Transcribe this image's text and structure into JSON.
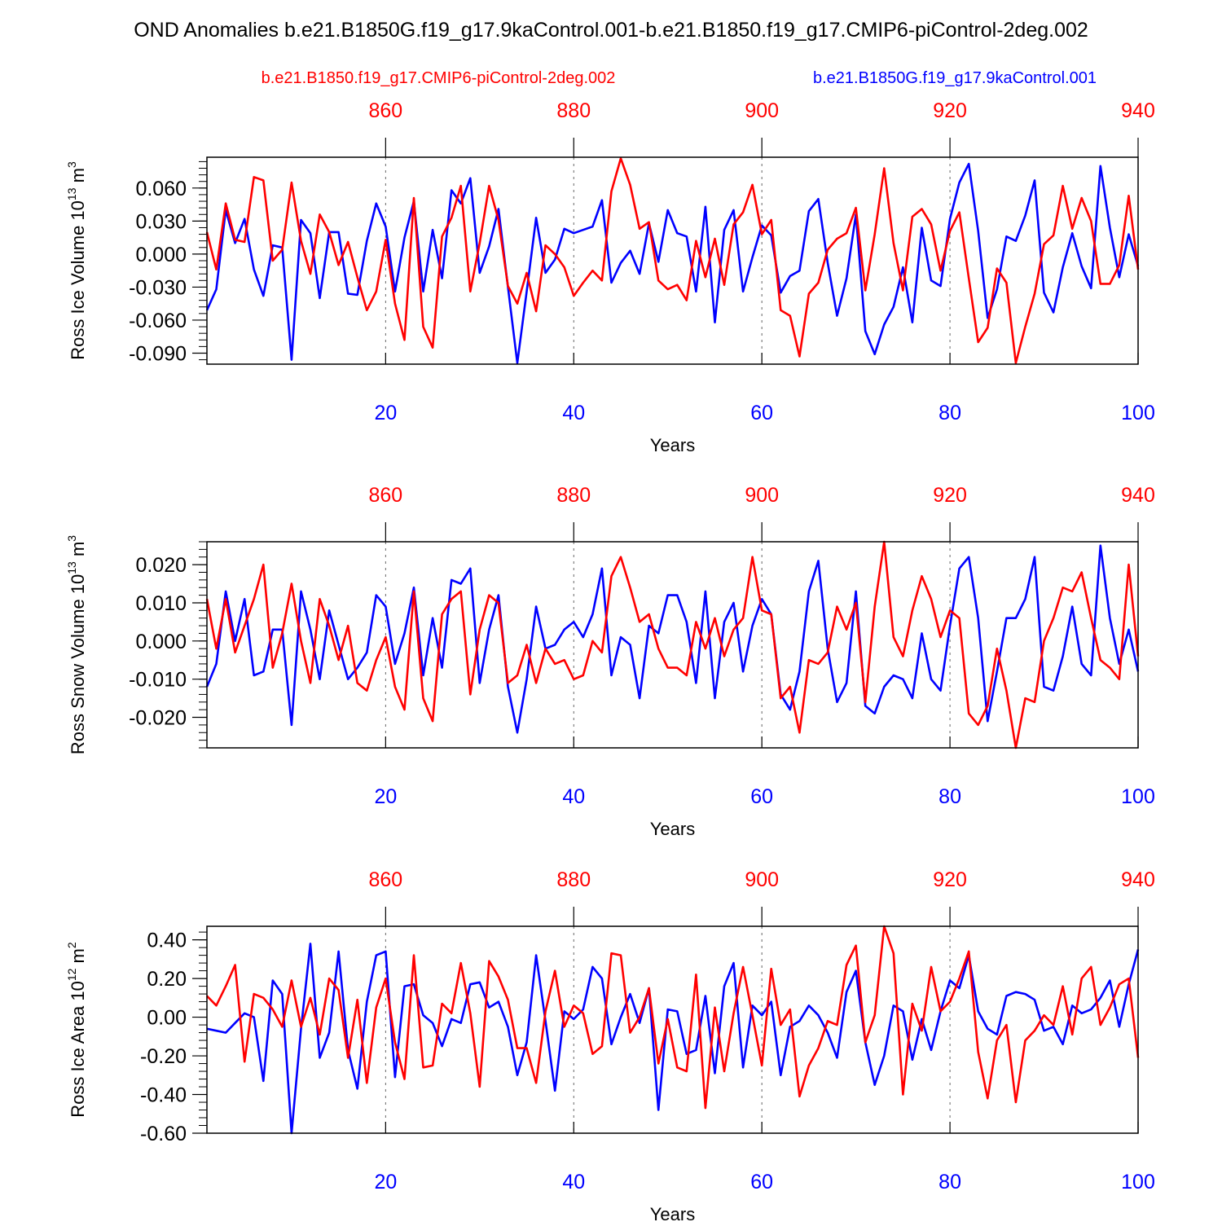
{
  "title": "OND Anomalies b.e21.B1850G.f19_g17.9kaControl.001-b.e21.B1850.f19_g17.CMIP6-piControl-2deg.002",
  "legend": {
    "red_label": "b.e21.B1850.f19_g17.CMIP6-piControl-2deg.002",
    "blue_label": "b.e21.B1850G.f19_g17.9kaControl.001"
  },
  "colors": {
    "red": "#ff0000",
    "blue": "#0000ff",
    "frame": "#000000"
  },
  "chart_data": [
    {
      "type": "line",
      "ylabel": {
        "text": "Ross Ice Volume 10",
        "sup": "13",
        "unit": " m",
        "unit_sup": "3"
      },
      "xlabel": "Years",
      "xlim": [
        1,
        100
      ],
      "top_xlim": [
        841,
        940
      ],
      "ylim": [
        -0.1,
        0.088
      ],
      "yticks": [
        -0.09,
        -0.06,
        -0.03,
        0.0,
        0.03,
        0.06
      ],
      "ytick_labels": [
        "-0.090",
        "-0.060",
        "-0.030",
        "0.000",
        "0.030",
        "0.060"
      ],
      "yminor_step": 0.006,
      "xticks": [
        20,
        40,
        60,
        80,
        100
      ],
      "xtick_labels": [
        "20",
        "40",
        "60",
        "80",
        "100"
      ],
      "top_xticks": [
        860,
        880,
        900,
        920,
        940
      ],
      "top_xtick_labels": [
        "860",
        "880",
        "900",
        "920",
        "940"
      ],
      "grid_x": [
        20,
        40,
        60,
        80
      ],
      "series": [
        {
          "name": "b.e21.B1850G.f19_g17.9kaControl.001",
          "color": "#0000ff",
          "values": [
            -0.051,
            -0.032,
            0.04,
            0.01,
            0.032,
            -0.014,
            -0.038,
            0.008,
            0.006,
            -0.096,
            0.031,
            0.019,
            -0.04,
            0.02,
            0.02,
            -0.036,
            -0.037,
            0.012,
            0.046,
            0.025,
            -0.034,
            0.015,
            0.048,
            -0.034,
            0.022,
            -0.022,
            0.058,
            0.046,
            0.069,
            -0.017,
            0.007,
            0.041,
            -0.03,
            -0.099,
            -0.034,
            0.033,
            -0.017,
            -0.005,
            0.023,
            0.019,
            0.022,
            0.025,
            0.049,
            -0.026,
            -0.008,
            0.003,
            -0.018,
            0.028,
            -0.007,
            0.04,
            0.019,
            0.016,
            -0.034,
            0.043,
            -0.062,
            0.022,
            0.04,
            -0.034,
            -0.003,
            0.026,
            0.017,
            -0.035,
            -0.02,
            -0.015,
            0.039,
            0.05,
            -0.008,
            -0.056,
            -0.022,
            0.036,
            -0.07,
            -0.091,
            -0.064,
            -0.048,
            -0.012,
            -0.062,
            0.024,
            -0.024,
            -0.029,
            0.032,
            0.065,
            0.082,
            0.021,
            -0.058,
            -0.032,
            0.016,
            0.012,
            0.035,
            0.067,
            -0.035,
            -0.053,
            -0.012,
            0.019,
            -0.011,
            -0.031,
            0.08,
            0.024,
            -0.021,
            0.018,
            -0.011
          ]
        },
        {
          "name": "b.e21.B1850.f19_g17.CMIP6-piControl-2deg.002",
          "color": "#ff0000",
          "values": [
            0.02,
            -0.014,
            0.046,
            0.013,
            0.011,
            0.07,
            0.067,
            -0.006,
            0.004,
            0.065,
            0.012,
            -0.018,
            0.036,
            0.02,
            -0.01,
            0.011,
            -0.021,
            -0.051,
            -0.034,
            0.013,
            -0.045,
            -0.078,
            0.051,
            -0.066,
            -0.085,
            0.016,
            0.033,
            0.062,
            -0.034,
            0.01,
            0.062,
            0.031,
            -0.029,
            -0.045,
            -0.017,
            -0.052,
            0.008,
            0.0,
            -0.012,
            -0.038,
            -0.026,
            -0.015,
            -0.024,
            0.057,
            0.087,
            0.063,
            0.023,
            0.029,
            -0.024,
            -0.032,
            -0.028,
            -0.042,
            0.012,
            -0.021,
            0.014,
            -0.028,
            0.027,
            0.038,
            0.063,
            0.018,
            0.031,
            -0.051,
            -0.056,
            -0.093,
            -0.036,
            -0.026,
            0.004,
            0.014,
            0.019,
            0.042,
            -0.033,
            0.018,
            0.078,
            0.01,
            -0.033,
            0.034,
            0.041,
            0.027,
            -0.015,
            0.021,
            0.038,
            -0.022,
            -0.08,
            -0.067,
            -0.013,
            -0.026,
            -0.099,
            -0.066,
            -0.036,
            0.009,
            0.017,
            0.062,
            0.023,
            0.051,
            0.03,
            -0.027,
            -0.027,
            -0.01,
            0.053,
            -0.014
          ]
        }
      ]
    },
    {
      "type": "line",
      "ylabel": {
        "text": "Ross Snow Volume 10",
        "sup": "13",
        "unit": " m",
        "unit_sup": "3"
      },
      "xlabel": "Years",
      "xlim": [
        1,
        100
      ],
      "top_xlim": [
        841,
        940
      ],
      "ylim": [
        -0.028,
        0.026
      ],
      "yticks": [
        -0.02,
        -0.01,
        0.0,
        0.01,
        0.02
      ],
      "ytick_labels": [
        "-0.020",
        "-0.010",
        "0.000",
        "0.010",
        "0.020"
      ],
      "yminor_step": 0.002,
      "xticks": [
        20,
        40,
        60,
        80,
        100
      ],
      "xtick_labels": [
        "20",
        "40",
        "60",
        "80",
        "100"
      ],
      "top_xticks": [
        860,
        880,
        900,
        920,
        940
      ],
      "top_xtick_labels": [
        "860",
        "880",
        "900",
        "920",
        "940"
      ],
      "grid_x": [
        20,
        40,
        60,
        80
      ],
      "series": [
        {
          "name": "b.e21.B1850G.f19_g17.9kaControl.001",
          "color": "#0000ff",
          "values": [
            -0.012,
            -0.006,
            0.013,
            0.0,
            0.011,
            -0.009,
            -0.008,
            0.003,
            0.003,
            -0.022,
            0.013,
            0.003,
            -0.01,
            0.008,
            -0.001,
            -0.01,
            -0.007,
            -0.003,
            0.012,
            0.009,
            -0.006,
            0.002,
            0.014,
            -0.009,
            0.006,
            -0.007,
            0.016,
            0.015,
            0.019,
            -0.011,
            0.003,
            0.012,
            -0.012,
            -0.024,
            -0.01,
            0.009,
            -0.002,
            -0.001,
            0.003,
            0.005,
            0.001,
            0.007,
            0.019,
            -0.009,
            0.001,
            -0.001,
            -0.015,
            0.004,
            0.002,
            0.012,
            0.012,
            0.005,
            -0.011,
            0.013,
            -0.015,
            0.005,
            0.01,
            -0.008,
            0.004,
            0.011,
            0.007,
            -0.014,
            -0.018,
            -0.008,
            0.013,
            0.021,
            -0.002,
            -0.016,
            -0.011,
            0.013,
            -0.017,
            -0.019,
            -0.012,
            -0.009,
            -0.01,
            -0.015,
            0.002,
            -0.01,
            -0.013,
            0.004,
            0.019,
            0.022,
            0.006,
            -0.021,
            -0.008,
            0.006,
            0.006,
            0.011,
            0.022,
            -0.012,
            -0.013,
            -0.004,
            0.009,
            -0.006,
            -0.009,
            0.025,
            0.006,
            -0.006,
            0.003,
            -0.008
          ]
        },
        {
          "name": "b.e21.B1850.f19_g17.CMIP6-piControl-2deg.002",
          "color": "#ff0000",
          "values": [
            0.011,
            -0.002,
            0.011,
            -0.003,
            0.004,
            0.011,
            0.02,
            -0.007,
            0.002,
            0.015,
            0.0,
            -0.011,
            0.011,
            0.004,
            -0.005,
            0.004,
            -0.011,
            -0.013,
            -0.005,
            0.001,
            -0.012,
            -0.018,
            0.013,
            -0.015,
            -0.021,
            0.007,
            0.011,
            0.013,
            -0.014,
            0.003,
            0.012,
            0.01,
            -0.011,
            -0.009,
            -0.001,
            -0.011,
            -0.002,
            -0.006,
            -0.005,
            -0.01,
            -0.009,
            0.0,
            -0.003,
            0.017,
            0.022,
            0.014,
            0.005,
            0.007,
            -0.002,
            -0.007,
            -0.007,
            -0.009,
            0.005,
            -0.002,
            0.006,
            -0.004,
            0.003,
            0.006,
            0.022,
            0.008,
            0.007,
            -0.015,
            -0.012,
            -0.024,
            -0.005,
            -0.006,
            -0.003,
            0.009,
            0.003,
            0.01,
            -0.016,
            0.009,
            0.026,
            0.001,
            -0.004,
            0.008,
            0.017,
            0.011,
            0.001,
            0.008,
            0.006,
            -0.019,
            -0.022,
            -0.017,
            -0.002,
            -0.013,
            -0.028,
            -0.015,
            -0.016,
            0.0,
            0.006,
            0.014,
            0.013,
            0.018,
            0.006,
            -0.005,
            -0.007,
            -0.01,
            0.02,
            -0.004
          ]
        }
      ]
    },
    {
      "type": "line",
      "ylabel": {
        "text": "Ross Ice Area 10",
        "sup": "12",
        "unit": " m",
        "unit_sup": "2"
      },
      "xlabel": "Years",
      "xlim": [
        1,
        100
      ],
      "top_xlim": [
        841,
        940
      ],
      "ylim": [
        -0.6,
        0.47
      ],
      "yticks": [
        -0.6,
        -0.4,
        -0.2,
        0.0,
        0.2,
        0.4
      ],
      "ytick_labels": [
        "-0.60",
        "-0.40",
        "-0.20",
        "0.00",
        "0.20",
        "0.40"
      ],
      "yminor_step": 0.04,
      "xticks": [
        20,
        40,
        60,
        80,
        100
      ],
      "xtick_labels": [
        "20",
        "40",
        "60",
        "80",
        "100"
      ],
      "top_xticks": [
        860,
        880,
        900,
        920,
        940
      ],
      "top_xtick_labels": [
        "860",
        "880",
        "900",
        "920",
        "940"
      ],
      "grid_x": [
        20,
        40,
        60,
        80
      ],
      "series": [
        {
          "name": "b.e21.B1850G.f19_g17.9kaControl.001",
          "color": "#0000ff",
          "values": [
            -0.06,
            -0.07,
            -0.08,
            -0.03,
            0.02,
            0.0,
            -0.33,
            0.19,
            0.12,
            -0.6,
            -0.06,
            0.38,
            -0.21,
            -0.08,
            0.34,
            -0.17,
            -0.37,
            0.08,
            0.32,
            0.34,
            -0.31,
            0.16,
            0.17,
            0.01,
            -0.03,
            -0.15,
            -0.01,
            -0.03,
            0.17,
            0.18,
            0.05,
            0.08,
            -0.05,
            -0.3,
            -0.13,
            0.32,
            -0.02,
            -0.38,
            0.03,
            -0.01,
            0.04,
            0.26,
            0.2,
            -0.14,
            0.0,
            0.12,
            -0.03,
            0.15,
            -0.48,
            0.04,
            0.03,
            -0.19,
            -0.17,
            0.11,
            -0.29,
            0.16,
            0.28,
            -0.26,
            0.06,
            0.01,
            0.08,
            -0.3,
            -0.05,
            -0.02,
            0.06,
            0.01,
            -0.08,
            -0.21,
            0.13,
            0.24,
            -0.13,
            -0.35,
            -0.2,
            0.06,
            0.03,
            -0.22,
            -0.01,
            -0.17,
            0.03,
            0.19,
            0.15,
            0.32,
            0.03,
            -0.06,
            -0.09,
            0.11,
            0.13,
            0.12,
            0.09,
            -0.07,
            -0.05,
            -0.14,
            0.06,
            0.02,
            0.04,
            0.1,
            0.19,
            -0.05,
            0.17,
            0.35
          ]
        },
        {
          "name": "b.e21.B1850.f19_g17.CMIP6-piControl-2deg.002",
          "color": "#ff0000",
          "values": [
            0.11,
            0.06,
            0.16,
            0.27,
            -0.23,
            0.12,
            0.1,
            0.04,
            -0.05,
            0.19,
            -0.05,
            0.1,
            -0.09,
            0.2,
            0.14,
            -0.21,
            0.09,
            -0.34,
            0.05,
            0.2,
            -0.13,
            -0.32,
            0.32,
            -0.26,
            -0.25,
            0.07,
            0.02,
            0.28,
            0.02,
            -0.36,
            0.29,
            0.21,
            0.09,
            -0.16,
            -0.16,
            -0.34,
            0.03,
            0.24,
            -0.05,
            0.06,
            0.02,
            -0.19,
            -0.15,
            0.33,
            0.32,
            -0.08,
            0.0,
            0.15,
            -0.24,
            -0.01,
            -0.26,
            -0.28,
            0.22,
            -0.47,
            0.05,
            -0.28,
            0.02,
            0.26,
            0.01,
            -0.25,
            0.25,
            -0.04,
            0.04,
            -0.41,
            -0.25,
            -0.16,
            -0.02,
            -0.04,
            0.27,
            0.37,
            -0.13,
            0.01,
            0.47,
            0.33,
            -0.4,
            0.07,
            -0.07,
            0.26,
            0.03,
            0.08,
            0.2,
            0.34,
            -0.18,
            -0.42,
            -0.12,
            -0.04,
            -0.44,
            -0.12,
            -0.07,
            0.01,
            -0.04,
            0.16,
            -0.09,
            0.2,
            0.26,
            -0.04,
            0.05,
            0.17,
            0.2,
            -0.21
          ]
        }
      ]
    }
  ]
}
